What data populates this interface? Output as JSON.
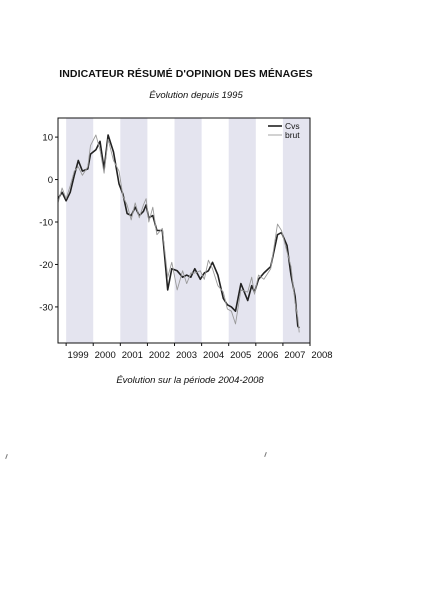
{
  "page": {
    "title": "INDICATEUR RÉSUMÉ D'OPINION DES MÉNAGES",
    "subtitle": "Évolution depuis 1995",
    "caption": "Évolution sur la période 2004-2008"
  },
  "chart_data": {
    "type": "line",
    "title": "",
    "xlabel": "",
    "ylabel": "",
    "xlim": [
      1998.7,
      2008.0
    ],
    "ylim": [
      -38.5,
      14.5
    ],
    "x_ticks": [
      1999,
      2000,
      2001,
      2002,
      2003,
      2004,
      2005,
      2006,
      2007,
      2008
    ],
    "y_ticks": [
      10,
      0,
      -10,
      -20,
      -30
    ],
    "shaded_years": [
      1999,
      2001,
      2003,
      2005,
      2007
    ],
    "legend_position": "top-right",
    "grid": false,
    "series": [
      {
        "name": "Cvs",
        "color": "#222222",
        "points": [
          [
            1998.7,
            -4.5
          ],
          [
            1998.85,
            -3
          ],
          [
            1999.0,
            -5
          ],
          [
            1999.15,
            -3
          ],
          [
            1999.3,
            1
          ],
          [
            1999.45,
            4.5
          ],
          [
            1999.6,
            2
          ],
          [
            1999.8,
            2.5
          ],
          [
            1999.9,
            6
          ],
          [
            2000.1,
            7
          ],
          [
            2000.25,
            9
          ],
          [
            2000.4,
            2.5
          ],
          [
            2000.55,
            10.5
          ],
          [
            2000.75,
            6.5
          ],
          [
            2000.95,
            -1
          ],
          [
            2001.1,
            -3.5
          ],
          [
            2001.25,
            -8
          ],
          [
            2001.4,
            -8.5
          ],
          [
            2001.55,
            -6.5
          ],
          [
            2001.7,
            -8.5
          ],
          [
            2001.85,
            -7.5
          ],
          [
            2001.95,
            -6
          ],
          [
            2002.05,
            -9
          ],
          [
            2002.2,
            -8.5
          ],
          [
            2002.35,
            -12
          ],
          [
            2002.55,
            -12
          ],
          [
            2002.75,
            -26
          ],
          [
            2002.9,
            -21
          ],
          [
            2003.1,
            -21.5
          ],
          [
            2003.3,
            -23
          ],
          [
            2003.45,
            -22.5
          ],
          [
            2003.6,
            -23
          ],
          [
            2003.75,
            -21
          ],
          [
            2003.95,
            -23.5
          ],
          [
            2004.1,
            -22
          ],
          [
            2004.25,
            -21.5
          ],
          [
            2004.4,
            -19.5
          ],
          [
            2004.6,
            -22.5
          ],
          [
            2004.8,
            -28
          ],
          [
            2004.95,
            -29.5
          ],
          [
            2005.1,
            -30
          ],
          [
            2005.25,
            -31
          ],
          [
            2005.45,
            -24.5
          ],
          [
            2005.7,
            -28.5
          ],
          [
            2005.85,
            -25
          ],
          [
            2005.95,
            -26.5
          ],
          [
            2006.1,
            -23.5
          ],
          [
            2006.3,
            -22
          ],
          [
            2006.55,
            -20.5
          ],
          [
            2006.8,
            -13
          ],
          [
            2006.95,
            -12.5
          ],
          [
            2007.15,
            -15.5
          ],
          [
            2007.3,
            -22.5
          ],
          [
            2007.45,
            -27.5
          ],
          [
            2007.55,
            -34.5
          ],
          [
            2007.6,
            -35
          ]
        ]
      },
      {
        "name": "brut",
        "color": "#9a9a9a",
        "points": [
          [
            1998.7,
            -5.5
          ],
          [
            1998.85,
            -2
          ],
          [
            1999.0,
            -4.5
          ],
          [
            1999.15,
            -1.5
          ],
          [
            1999.3,
            2
          ],
          [
            1999.45,
            3
          ],
          [
            1999.6,
            1
          ],
          [
            1999.8,
            3
          ],
          [
            1999.9,
            8
          ],
          [
            2000.1,
            10.5
          ],
          [
            2000.25,
            7
          ],
          [
            2000.4,
            1.5
          ],
          [
            2000.55,
            9.5
          ],
          [
            2000.75,
            4.5
          ],
          [
            2000.95,
            2
          ],
          [
            2001.1,
            -4
          ],
          [
            2001.25,
            -6
          ],
          [
            2001.4,
            -9.5
          ],
          [
            2001.55,
            -5.5
          ],
          [
            2001.7,
            -9
          ],
          [
            2001.85,
            -6
          ],
          [
            2001.95,
            -4.5
          ],
          [
            2002.05,
            -10
          ],
          [
            2002.2,
            -6.5
          ],
          [
            2002.35,
            -13
          ],
          [
            2002.55,
            -11.5
          ],
          [
            2002.75,
            -23
          ],
          [
            2002.9,
            -19.5
          ],
          [
            2003.1,
            -26
          ],
          [
            2003.3,
            -21.5
          ],
          [
            2003.45,
            -24.5
          ],
          [
            2003.6,
            -22
          ],
          [
            2003.75,
            -22
          ],
          [
            2003.95,
            -21.5
          ],
          [
            2004.1,
            -23.5
          ],
          [
            2004.25,
            -19
          ],
          [
            2004.4,
            -21
          ],
          [
            2004.6,
            -25
          ],
          [
            2004.8,
            -26.5
          ],
          [
            2004.95,
            -30.5
          ],
          [
            2005.1,
            -31
          ],
          [
            2005.25,
            -34
          ],
          [
            2005.45,
            -26
          ],
          [
            2005.7,
            -26.5
          ],
          [
            2005.85,
            -23
          ],
          [
            2005.95,
            -27
          ],
          [
            2006.1,
            -22.5
          ],
          [
            2006.3,
            -23.5
          ],
          [
            2006.55,
            -21
          ],
          [
            2006.8,
            -10.5
          ],
          [
            2006.95,
            -12
          ],
          [
            2007.15,
            -17
          ],
          [
            2007.3,
            -20.5
          ],
          [
            2007.45,
            -29
          ],
          [
            2007.55,
            -32.5
          ],
          [
            2007.6,
            -36
          ]
        ]
      }
    ]
  }
}
